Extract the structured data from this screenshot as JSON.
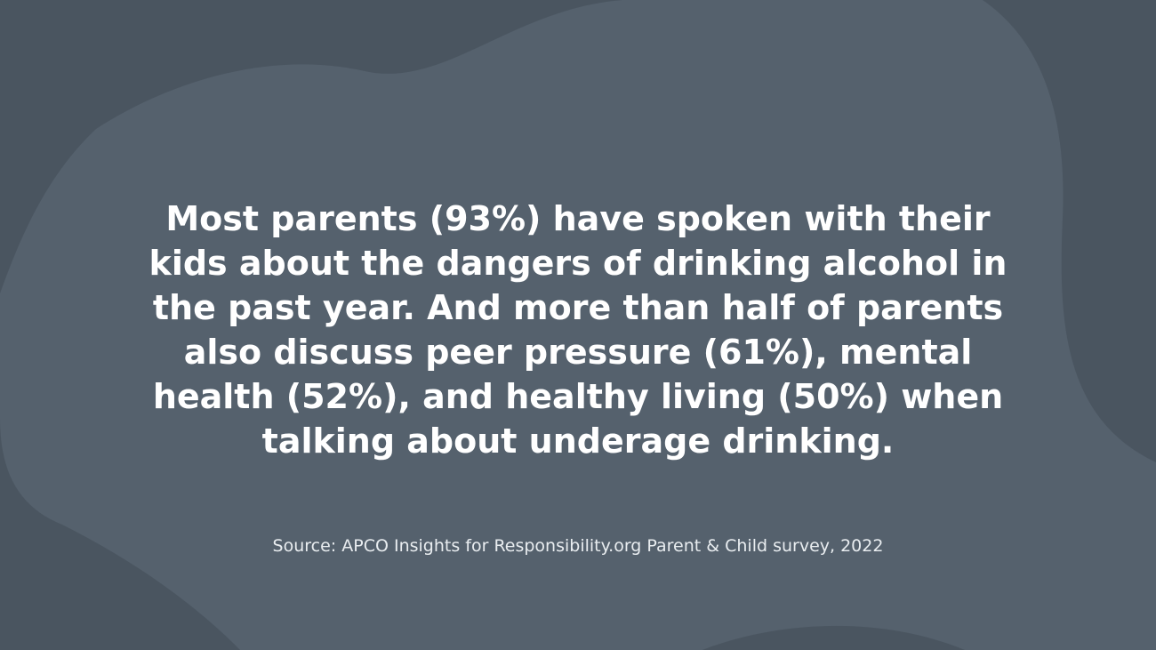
{
  "colors": {
    "background_dark": "#4a5560",
    "background_blob": "#55616d",
    "headline_text": "#ffffff",
    "source_text": "#e9edf0"
  },
  "headline": {
    "text": "Most parents (93%) have spoken with their kids about the dangers of drinking alcohol in the past year. And more than half of parents also discuss peer pressure (61%), mental health (52%), and healthy living (50%) when talking about underage drinking."
  },
  "source": {
    "text": "Source: APCO Insights for Responsibility.org Parent & Child survey, 2022"
  }
}
